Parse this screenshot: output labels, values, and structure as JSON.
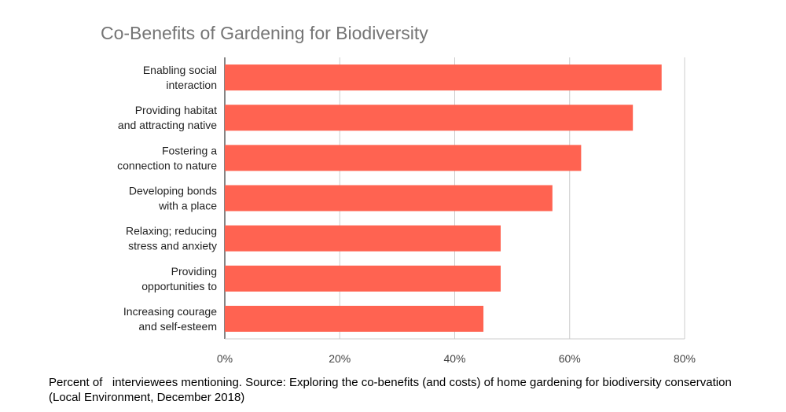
{
  "chart_data": {
    "type": "bar",
    "orientation": "horizontal",
    "title": "Co-Benefits of Gardening for Biodiversity",
    "categories": [
      [
        "Enabling social",
        "interaction"
      ],
      [
        "Providing habitat",
        "and attracting native"
      ],
      [
        "Fostering a",
        "connection to nature"
      ],
      [
        "Developing bonds",
        "with a place"
      ],
      [
        "Relaxing; reducing",
        "stress and anxiety"
      ],
      [
        "Providing",
        "opportunities to"
      ],
      [
        "Increasing courage",
        "and self-esteem"
      ]
    ],
    "values": [
      76,
      71,
      62,
      57,
      48,
      48,
      45
    ],
    "x_ticks": [
      "0%",
      "20%",
      "40%",
      "60%",
      "80%"
    ],
    "xlim": [
      0,
      80
    ],
    "grid": true,
    "legend": "none",
    "bar_color": "#ff6351"
  },
  "caption": "Percent of   interviewees mentioning. Source: Exploring the co-benefits (and costs) of home gardening for biodiversity conservation (Local Environment, December 2018)"
}
